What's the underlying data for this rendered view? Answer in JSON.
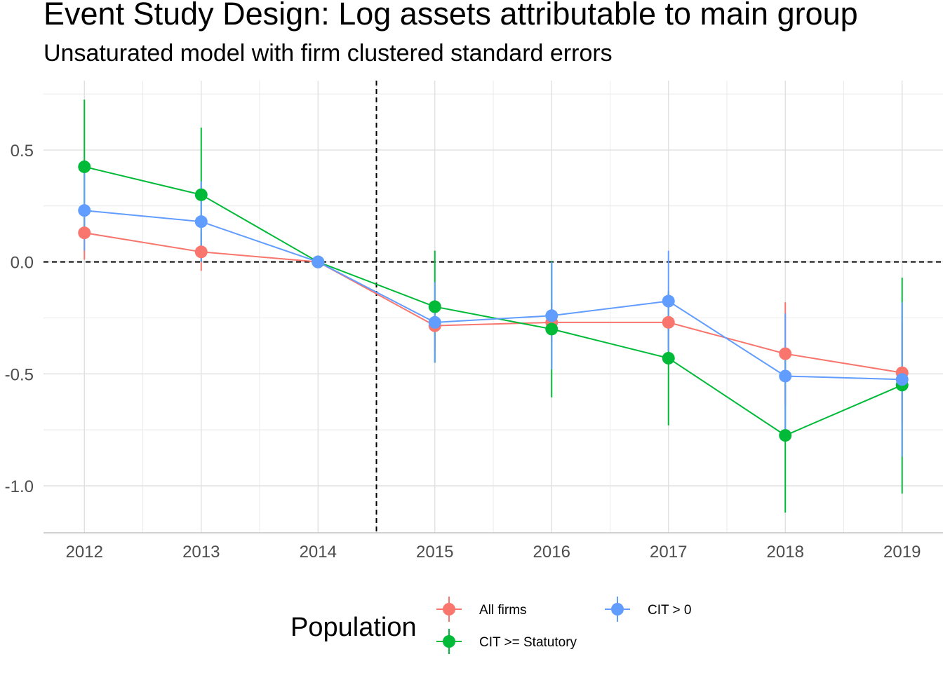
{
  "chart_data": {
    "type": "line",
    "title": "Event Study Design: Log assets attributable to main group",
    "subtitle": "Unsaturated model with firm clustered standard errors",
    "xlabel": "",
    "ylabel": "",
    "x": [
      2012,
      2013,
      2014,
      2015,
      2016,
      2017,
      2018,
      2019
    ],
    "x_tick_labels": [
      "2012",
      "2013",
      "2014",
      "2015",
      "2016",
      "2017",
      "2018",
      "2019"
    ],
    "y_ticks": [
      -1.0,
      -0.5,
      0.0,
      0.5
    ],
    "y_tick_labels": [
      "-1.0",
      "-0.5",
      "0.0",
      "0.5"
    ],
    "xlim": [
      2011.65,
      2019.35
    ],
    "ylim": [
      -1.21,
      0.81
    ],
    "grid": true,
    "reference_lines": {
      "vertical_x": 2014.5,
      "horizontal_y": 0.0,
      "style": "dashed"
    },
    "legend": {
      "title": "Population",
      "position": "bottom"
    },
    "series": [
      {
        "name": "All firms",
        "color": "#F8766D",
        "values": [
          0.13,
          0.045,
          0.0,
          -0.285,
          -0.27,
          -0.27,
          -0.41,
          -0.495
        ],
        "lower": [
          0.01,
          -0.04,
          0.0,
          -0.4,
          -0.36,
          -0.4,
          -0.64,
          -0.72
        ],
        "upper": [
          0.25,
          0.13,
          0.0,
          -0.17,
          -0.18,
          -0.14,
          -0.18,
          -0.27
        ]
      },
      {
        "name": "CIT >= Statutory",
        "color": "#00BA38",
        "values": [
          0.425,
          0.3,
          0.0,
          -0.2,
          -0.3,
          -0.43,
          -0.775,
          -0.55
        ],
        "lower": [
          0.12,
          0.0,
          0.0,
          -0.45,
          -0.605,
          -0.73,
          -1.12,
          -1.035
        ],
        "upper": [
          0.725,
          0.6,
          0.0,
          0.05,
          0.005,
          -0.13,
          -0.43,
          -0.07
        ]
      },
      {
        "name": "CIT > 0",
        "color": "#619CFF",
        "values": [
          0.23,
          0.18,
          0.0,
          -0.27,
          -0.24,
          -0.175,
          -0.51,
          -0.525
        ],
        "lower": [
          0.05,
          0.0,
          0.0,
          -0.45,
          -0.48,
          -0.4,
          -0.79,
          -0.87
        ],
        "upper": [
          0.41,
          0.36,
          0.0,
          -0.09,
          0.0,
          0.05,
          -0.23,
          -0.18
        ]
      }
    ]
  }
}
